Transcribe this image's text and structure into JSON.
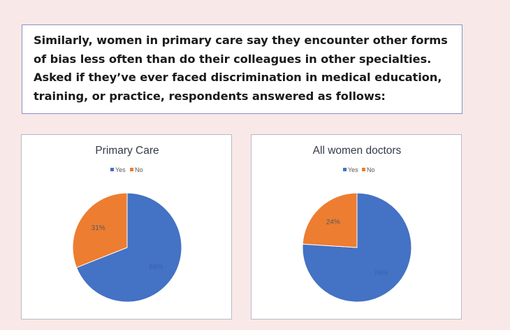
{
  "intro": {
    "text": "Similarly, women in primary care say they encounter other forms of bias less often than do their colleagues in other specialties. Asked if they’ve ever faced discrimination in medical education, training, or practice, respondents answered as follows:"
  },
  "colors": {
    "background": "#f9e8e8",
    "yes": "#4472c4",
    "no": "#ed7d31",
    "yes_label": "#3a5fa8",
    "no_label": "#595959"
  },
  "chart_data": [
    {
      "type": "pie",
      "title": "Primary Care",
      "categories": [
        "Yes",
        "No"
      ],
      "values": [
        69,
        31
      ],
      "labels": [
        "69%",
        "31%"
      ],
      "legend": "top"
    },
    {
      "type": "pie",
      "title": "All women doctors",
      "categories": [
        "Yes",
        "No"
      ],
      "values": [
        76,
        24
      ],
      "labels": [
        "76%",
        "24%"
      ],
      "legend": "top"
    }
  ]
}
